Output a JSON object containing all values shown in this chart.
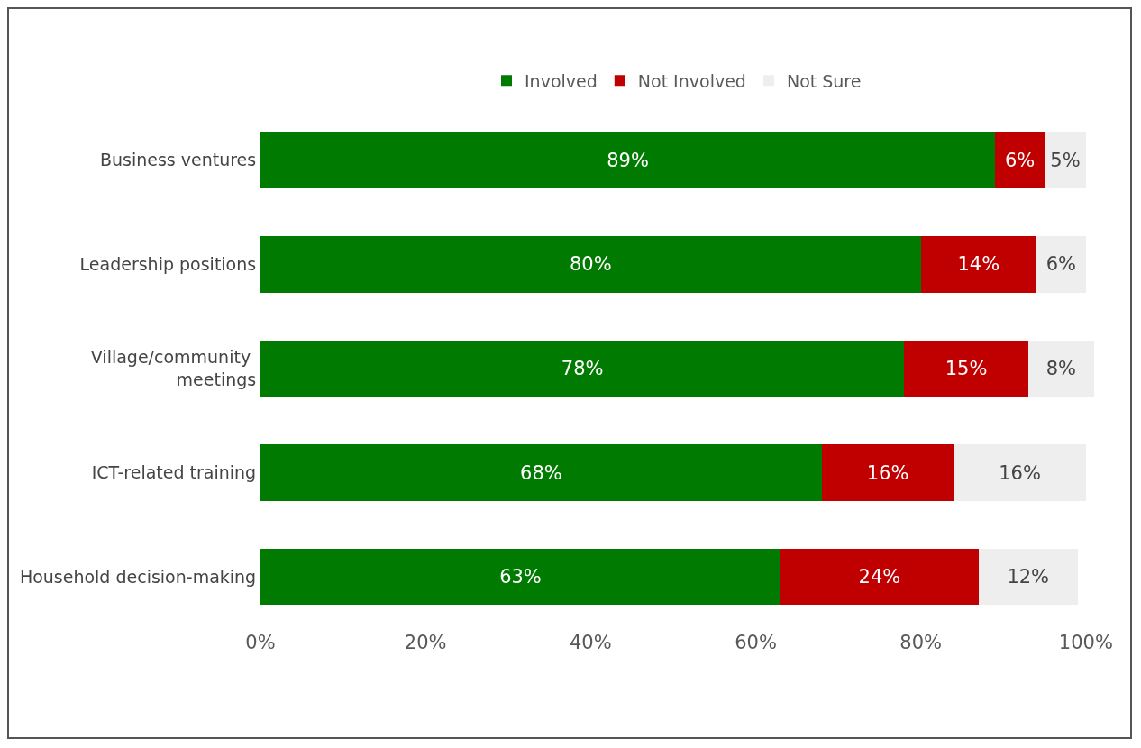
{
  "chart_data": {
    "type": "bar",
    "orientation": "horizontal",
    "stacked": true,
    "categories": [
      "Business ventures",
      "Leadership positions",
      "Village/community meetings",
      "ICT-related training",
      "Household decision-making"
    ],
    "series": [
      {
        "name": "Involved",
        "color": "#007a00",
        "values": [
          89,
          80,
          78,
          68,
          63
        ],
        "value_labels": [
          "89%",
          "80%",
          "78%",
          "68%",
          "63%"
        ]
      },
      {
        "name": "Not Involved",
        "color": "#c00000",
        "values": [
          6,
          14,
          15,
          16,
          24
        ],
        "value_labels": [
          "6%",
          "14%",
          "15%",
          "16%",
          "24%"
        ]
      },
      {
        "name": "Not Sure",
        "color": "#eeeeee",
        "values": [
          5,
          6,
          8,
          16,
          12
        ],
        "value_labels": [
          "5%",
          "6%",
          "8%",
          "16%",
          "12%"
        ]
      }
    ],
    "xlim": [
      0,
      101
    ],
    "xticks": [
      {
        "value": 0,
        "label": "0%"
      },
      {
        "value": 20,
        "label": "20%"
      },
      {
        "value": 40,
        "label": "40%"
      },
      {
        "value": 60,
        "label": "60%"
      },
      {
        "value": 80,
        "label": "80%"
      },
      {
        "value": 100,
        "label": "100%"
      }
    ],
    "grid": false,
    "legend": "top"
  }
}
